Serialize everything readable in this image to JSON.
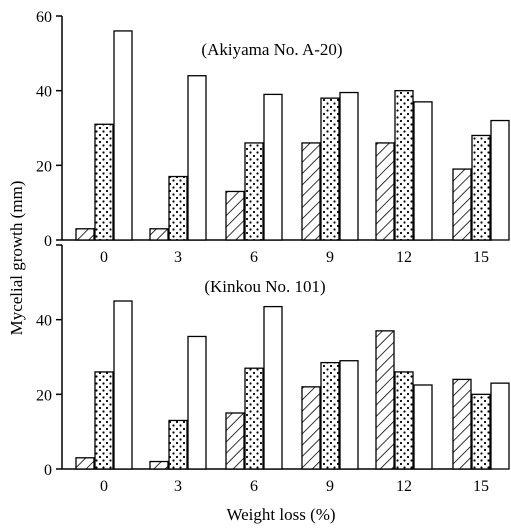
{
  "chart_data": [
    {
      "type": "bar",
      "title": "(Akiyama No. A-20)",
      "categories": [
        "0",
        "3",
        "6",
        "9",
        "12",
        "15"
      ],
      "series": [
        {
          "pattern": "hatched",
          "values": [
            3,
            3,
            13,
            26,
            26,
            19
          ]
        },
        {
          "pattern": "dotted",
          "values": [
            31,
            17,
            26,
            38,
            40,
            28
          ]
        },
        {
          "pattern": "open",
          "values": [
            56,
            44,
            39,
            39.5,
            37,
            32
          ]
        }
      ],
      "ylim": [
        0,
        60
      ],
      "yticks": [
        "0",
        "20",
        "40",
        "60"
      ],
      "grid": false
    },
    {
      "type": "bar",
      "title": "(Kinkou No. 101)",
      "categories": [
        "0",
        "3",
        "6",
        "9",
        "12",
        "15"
      ],
      "series": [
        {
          "pattern": "hatched",
          "values": [
            3,
            2,
            15,
            22,
            37,
            24
          ]
        },
        {
          "pattern": "dotted",
          "values": [
            26,
            13,
            27,
            28.5,
            26,
            20
          ]
        },
        {
          "pattern": "open",
          "values": [
            45,
            35.5,
            43.5,
            29,
            22.5,
            23
          ]
        }
      ],
      "ylim": [
        0,
        60
      ],
      "yticks": [
        "0",
        "20",
        "40",
        "60"
      ],
      "grid": false
    }
  ],
  "labels": {
    "ylabel": "Mycelial growth (mm)",
    "xlabel": "Weight loss (%)"
  }
}
